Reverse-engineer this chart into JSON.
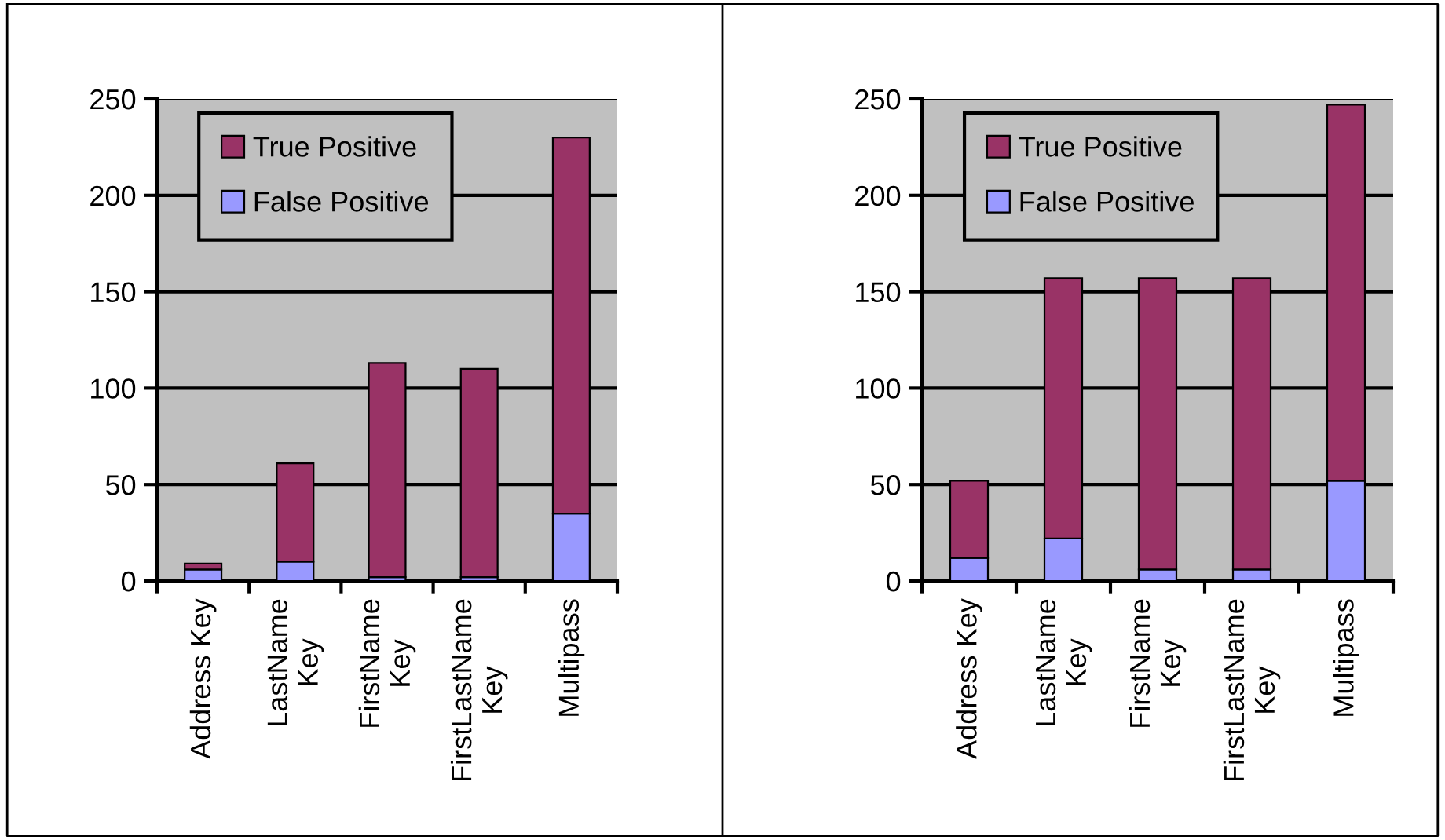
{
  "chart_data": [
    {
      "type": "bar",
      "stacked": true,
      "categories": [
        "Address Key",
        "LastName\nKey",
        "FirstName\nKey",
        "FirstLastName\nKey",
        "Multipass"
      ],
      "ylim": [
        0,
        250
      ],
      "yticks": [
        0,
        50,
        100,
        150,
        200,
        250
      ],
      "grid": "y",
      "legend": "top left",
      "series": [
        {
          "name": "False Positive",
          "color": "#9999ff",
          "values": [
            6,
            10,
            2,
            2,
            35
          ]
        },
        {
          "name": "True Positive",
          "color": "#993366",
          "values": [
            3,
            51,
            111,
            108,
            195
          ]
        }
      ]
    },
    {
      "type": "bar",
      "stacked": true,
      "categories": [
        "Address Key",
        "LastName\nKey",
        "FirstName\nKey",
        "FirstLastName\nKey",
        "Multipass"
      ],
      "ylim": [
        0,
        250
      ],
      "yticks": [
        0,
        50,
        100,
        150,
        200,
        250
      ],
      "grid": "y",
      "legend": "top left",
      "series": [
        {
          "name": "False Positive",
          "color": "#9999ff",
          "values": [
            12,
            22,
            6,
            6,
            52
          ]
        },
        {
          "name": "True Positive",
          "color": "#993366",
          "values": [
            40,
            135,
            151,
            151,
            195
          ]
        }
      ]
    }
  ]
}
